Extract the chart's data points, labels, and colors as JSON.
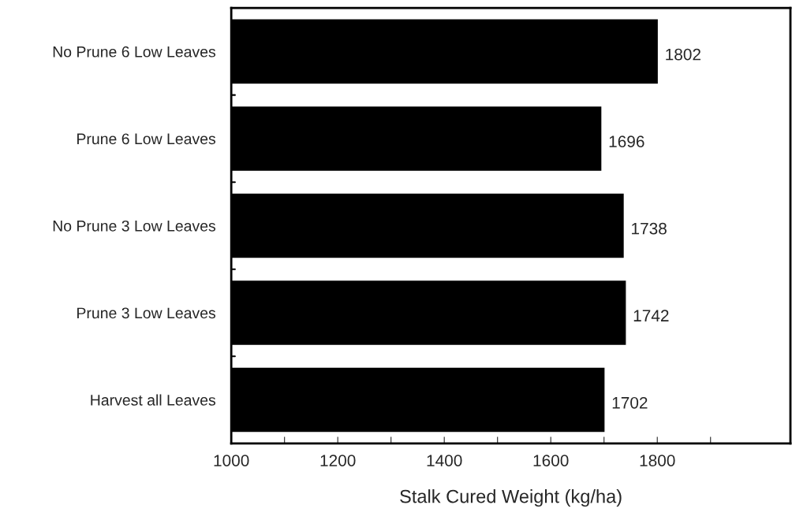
{
  "chart_data": {
    "type": "bar",
    "orientation": "horizontal",
    "xlabel": "Stalk Cured Weight (kg/ha)",
    "categories": [
      "No Prune 6 Low Leaves",
      "Prune 6 Low Leaves",
      "No Prune 3 Low Leaves",
      "Prune 3 Low Leaves",
      "Harvest all Leaves"
    ],
    "values": [
      1802,
      1696,
      1738,
      1742,
      1702
    ],
    "color": "#000000",
    "data_labels": true,
    "xlim": [
      1000,
      2050
    ],
    "xticks": [
      1000,
      {
        "value": 1100,
        "label": null
      },
      1200,
      {
        "value": 1300,
        "label": null
      },
      1400,
      {
        "value": 1500,
        "label": null
      },
      1600,
      {
        "value": 1700,
        "label": null
      },
      1800,
      {
        "value": 1900,
        "label": null
      }
    ],
    "grid": false,
    "legend": false
  }
}
